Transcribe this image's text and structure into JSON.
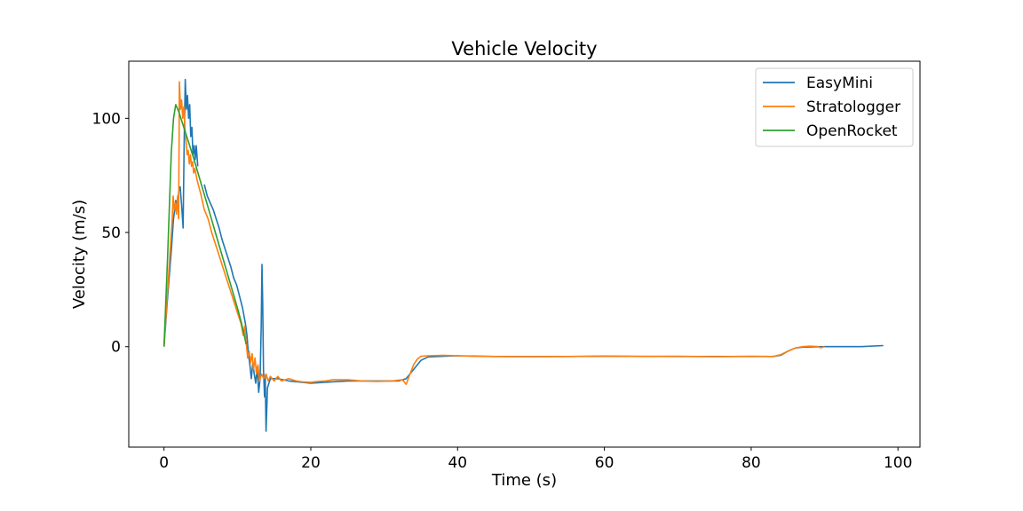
{
  "chart_data": {
    "type": "line",
    "title": "Vehicle Velocity",
    "xlabel": "Time (s)",
    "ylabel": "Velocity (m/s)",
    "xlim": [
      -4.8,
      103
    ],
    "ylim": [
      -44,
      125
    ],
    "xticks": [
      0,
      20,
      40,
      60,
      80,
      100
    ],
    "yticks": [
      0,
      50,
      100
    ],
    "grid": false,
    "legend_position": "top-right",
    "series": [
      {
        "name": "EasyMini",
        "color": "#1f77b4",
        "points": [
          [
            0,
            0
          ],
          [
            0.5,
            22
          ],
          [
            1.0,
            42
          ],
          [
            1.3,
            56
          ],
          [
            1.6,
            64
          ],
          [
            1.9,
            61
          ],
          [
            2.0,
            68
          ],
          [
            2.2,
            70
          ],
          [
            2.4,
            62
          ],
          [
            2.6,
            52
          ],
          [
            2.75,
            90
          ],
          [
            2.9,
            117
          ],
          [
            3.05,
            104
          ],
          [
            3.2,
            110
          ],
          [
            3.35,
            100
          ],
          [
            3.5,
            106
          ],
          [
            3.65,
            92
          ],
          [
            3.8,
            96
          ],
          [
            3.95,
            84
          ],
          [
            4.1,
            88
          ],
          [
            4.25,
            82
          ],
          [
            4.4,
            88
          ],
          [
            4.6,
            79
          ],
          null,
          [
            5.5,
            71
          ],
          [
            5.9,
            66
          ],
          [
            6.3,
            63
          ],
          [
            6.7,
            60
          ],
          [
            7.1,
            56
          ],
          [
            7.5,
            52
          ],
          [
            7.9,
            47
          ],
          [
            8.3,
            43
          ],
          [
            8.7,
            39
          ],
          [
            9.1,
            35
          ],
          [
            9.5,
            30
          ],
          [
            9.9,
            27
          ],
          [
            10.3,
            22
          ],
          [
            10.7,
            17
          ],
          [
            11.1,
            10
          ],
          [
            11.3,
            5
          ],
          [
            11.5,
            -3
          ],
          [
            11.7,
            -8
          ],
          [
            11.9,
            -14
          ],
          [
            12.1,
            -7
          ],
          [
            12.3,
            -12
          ],
          [
            12.5,
            -16
          ],
          [
            12.7,
            -9
          ],
          [
            12.9,
            -20
          ],
          [
            13.1,
            -14
          ],
          [
            13.25,
            10
          ],
          [
            13.35,
            36
          ],
          [
            13.45,
            20
          ],
          [
            13.55,
            -10
          ],
          [
            13.7,
            -22
          ],
          [
            13.8,
            -13
          ],
          [
            13.9,
            -37
          ],
          [
            14.1,
            -18
          ],
          [
            14.5,
            -14
          ],
          [
            15.5,
            -14
          ],
          [
            17,
            -15
          ],
          [
            20,
            -16
          ],
          [
            25,
            -15
          ],
          [
            30,
            -15
          ],
          [
            32,
            -15
          ],
          [
            33,
            -14
          ],
          [
            34,
            -10
          ],
          [
            35,
            -6
          ],
          [
            36,
            -4.5
          ],
          [
            38,
            -4.2
          ],
          [
            40,
            -4
          ],
          [
            45,
            -4.3
          ],
          [
            50,
            -4.4
          ],
          [
            60,
            -4.2
          ],
          [
            70,
            -4.3
          ],
          [
            80,
            -4.3
          ],
          [
            83,
            -4.3
          ],
          [
            84,
            -3.8
          ],
          [
            85,
            -2
          ],
          [
            86,
            -0.6
          ],
          [
            87,
            -0.2
          ],
          [
            90,
            0
          ],
          [
            95,
            0
          ],
          [
            98,
            0.5
          ]
        ]
      },
      {
        "name": "Stratologger",
        "color": "#ff7f0e",
        "points": [
          [
            0,
            0
          ],
          [
            0.4,
            20
          ],
          [
            0.8,
            40
          ],
          [
            1.1,
            55
          ],
          [
            1.25,
            66
          ],
          [
            1.4,
            60
          ],
          [
            1.55,
            63
          ],
          [
            1.7,
            58
          ],
          [
            1.85,
            66
          ],
          [
            2.0,
            56
          ],
          [
            2.1,
            116
          ],
          [
            2.25,
            104
          ],
          [
            2.4,
            108
          ],
          [
            2.55,
            100
          ],
          [
            2.7,
            105
          ],
          [
            2.85,
            96
          ],
          [
            3.0,
            90
          ],
          [
            3.15,
            84
          ],
          [
            3.3,
            86
          ],
          [
            3.45,
            80
          ],
          [
            3.6,
            84
          ],
          [
            3.75,
            79
          ],
          [
            3.9,
            81
          ],
          [
            4.05,
            76
          ],
          [
            4.2,
            78
          ],
          [
            4.5,
            73
          ],
          [
            5.0,
            67
          ],
          [
            5.5,
            60
          ],
          [
            6.0,
            56
          ],
          [
            6.5,
            50
          ],
          [
            7.0,
            45
          ],
          [
            7.5,
            40
          ],
          [
            8.0,
            35
          ],
          [
            8.5,
            30
          ],
          [
            9.0,
            25
          ],
          [
            9.5,
            20
          ],
          [
            10.0,
            15
          ],
          [
            10.5,
            10
          ],
          [
            10.8,
            5
          ],
          [
            11.0,
            9
          ],
          [
            11.2,
            2
          ],
          [
            11.4,
            -5
          ],
          [
            11.6,
            -2
          ],
          [
            11.8,
            -7
          ],
          [
            12.0,
            -3
          ],
          [
            12.2,
            -10
          ],
          [
            12.4,
            -5
          ],
          [
            12.6,
            -12
          ],
          [
            12.8,
            -8
          ],
          [
            13.0,
            -15
          ],
          [
            13.3,
            -12
          ],
          [
            13.6,
            -14
          ],
          [
            13.9,
            -12
          ],
          [
            14.2,
            -15
          ],
          [
            14.5,
            -13
          ],
          [
            15.0,
            -15
          ],
          [
            15.5,
            -13
          ],
          [
            16.0,
            -15
          ],
          [
            17,
            -14
          ],
          [
            18,
            -15
          ],
          [
            19,
            -15.5
          ],
          [
            20,
            -15.6
          ],
          [
            21,
            -15.2
          ],
          [
            22,
            -15
          ],
          [
            23,
            -14.5
          ],
          [
            25,
            -14.5
          ],
          [
            27,
            -15
          ],
          [
            29,
            -15.2
          ],
          [
            31,
            -15
          ],
          [
            32.5,
            -14.5
          ],
          [
            33,
            -16.5
          ],
          [
            33.4,
            -13
          ],
          [
            34,
            -8
          ],
          [
            34.5,
            -5.5
          ],
          [
            35,
            -4.2
          ],
          [
            36,
            -4
          ],
          [
            38,
            -3.8
          ],
          [
            40,
            -4
          ],
          [
            42,
            -4.2
          ],
          [
            45,
            -4.3
          ],
          [
            50,
            -4.4
          ],
          [
            55,
            -4.3
          ],
          [
            60,
            -4.1
          ],
          [
            65,
            -4.3
          ],
          [
            70,
            -4.2
          ],
          [
            75,
            -4.4
          ],
          [
            80,
            -4.2
          ],
          [
            83,
            -4.3
          ],
          [
            84,
            -3.5
          ],
          [
            85,
            -2
          ],
          [
            86,
            -0.6
          ],
          [
            87,
            0
          ],
          [
            88,
            0.2
          ],
          [
            89,
            0.1
          ],
          [
            89.5,
            -0.5
          ],
          [
            90,
            0
          ]
        ]
      },
      {
        "name": "OpenRocket",
        "color": "#2ca02c",
        "points": [
          [
            0,
            0
          ],
          [
            0.5,
            40
          ],
          [
            1.0,
            85
          ],
          [
            1.3,
            100
          ],
          [
            1.6,
            106
          ],
          [
            2.0,
            103
          ],
          [
            3.0,
            93
          ],
          [
            4.0,
            83
          ],
          [
            5.0,
            72
          ],
          [
            6.0,
            61
          ],
          [
            7.0,
            50
          ],
          [
            8.0,
            39
          ],
          [
            9.0,
            28
          ],
          [
            10.0,
            17
          ],
          [
            10.5,
            11
          ],
          [
            11.0,
            4
          ],
          [
            11.2,
            1
          ]
        ]
      }
    ]
  }
}
